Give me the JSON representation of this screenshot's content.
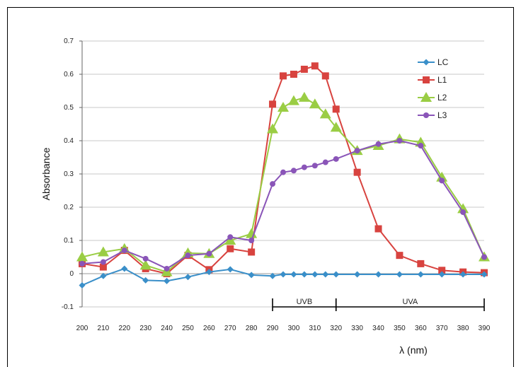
{
  "chart_data": {
    "type": "line",
    "xlabel": "λ (nm)",
    "ylabel": "Absorbance",
    "ylim": [
      -0.1,
      0.7
    ],
    "yticks": [
      "-0.1",
      "0",
      "0.1",
      "0.2",
      "0.3",
      "0.4",
      "0.5",
      "0.6",
      "0.7"
    ],
    "xticks": [
      "200",
      "210",
      "220",
      "230",
      "240",
      "250",
      "260",
      "270",
      "280",
      "290",
      "300",
      "310",
      "320",
      "330",
      "340",
      "350",
      "360",
      "370",
      "380",
      "390"
    ],
    "grid": "horizontal",
    "legend_position": "top-right",
    "series": [
      {
        "name": "LC",
        "color": "#3a8fc9",
        "marker": "diamond",
        "x": [
          200,
          210,
          220,
          230,
          240,
          250,
          260,
          270,
          280,
          290,
          295,
          300,
          305,
          310,
          315,
          320,
          330,
          340,
          350,
          360,
          370,
          380,
          390
        ],
        "y": [
          -0.035,
          -0.007,
          0.015,
          -0.02,
          -0.022,
          -0.01,
          0.005,
          0.013,
          -0.004,
          -0.007,
          -0.002,
          -0.002,
          -0.002,
          -0.002,
          -0.002,
          -0.002,
          -0.002,
          -0.002,
          -0.002,
          -0.002,
          -0.002,
          -0.002,
          -0.002
        ]
      },
      {
        "name": "L1",
        "color": "#d8433f",
        "marker": "square",
        "x": [
          200,
          210,
          220,
          230,
          240,
          250,
          260,
          270,
          280,
          290,
          295,
          300,
          305,
          310,
          315,
          320,
          330,
          340,
          350,
          360,
          370,
          380,
          390
        ],
        "y": [
          0.03,
          0.02,
          0.07,
          0.015,
          0.0,
          0.055,
          0.012,
          0.075,
          0.065,
          0.51,
          0.595,
          0.6,
          0.615,
          0.625,
          0.595,
          0.495,
          0.305,
          0.135,
          0.055,
          0.03,
          0.01,
          0.005,
          0.003
        ]
      },
      {
        "name": "L2",
        "color": "#9acd44",
        "marker": "triangle",
        "x": [
          200,
          210,
          220,
          230,
          240,
          250,
          260,
          270,
          280,
          290,
          295,
          300,
          305,
          310,
          315,
          320,
          330,
          340,
          350,
          360,
          370,
          380,
          390
        ],
        "y": [
          0.05,
          0.065,
          0.075,
          0.025,
          0.005,
          0.062,
          0.06,
          0.1,
          0.12,
          0.435,
          0.5,
          0.52,
          0.53,
          0.51,
          0.48,
          0.44,
          0.37,
          0.385,
          0.405,
          0.395,
          0.29,
          0.195,
          0.05
        ]
      },
      {
        "name": "L3",
        "color": "#8a55b8",
        "marker": "circle",
        "x": [
          200,
          210,
          220,
          230,
          240,
          250,
          260,
          270,
          280,
          290,
          295,
          300,
          305,
          310,
          315,
          320,
          330,
          340,
          350,
          360,
          370,
          380,
          390
        ],
        "y": [
          0.03,
          0.035,
          0.07,
          0.045,
          0.015,
          0.055,
          0.06,
          0.11,
          0.1,
          0.27,
          0.305,
          0.31,
          0.32,
          0.325,
          0.335,
          0.345,
          0.37,
          0.39,
          0.4,
          0.385,
          0.28,
          0.185,
          0.05
        ]
      }
    ],
    "bands": [
      {
        "label": "UVB",
        "from": 290,
        "to": 320
      },
      {
        "label": "UVA",
        "from": 320,
        "to": 390
      }
    ]
  }
}
